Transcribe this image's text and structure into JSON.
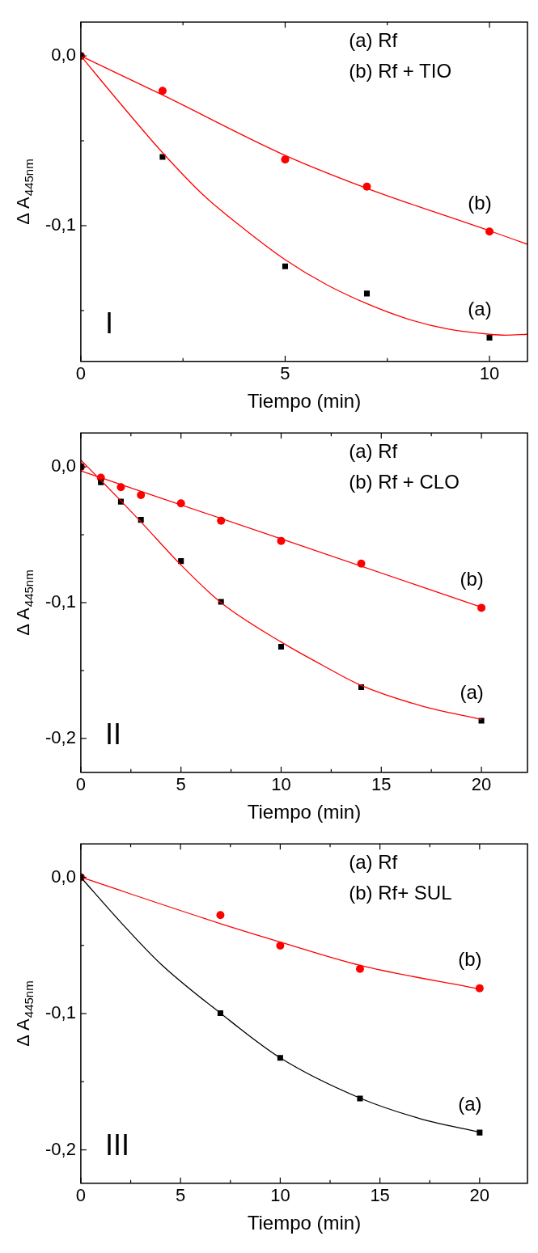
{
  "chart_data": [
    {
      "type": "scatter",
      "title": "I",
      "xlabel": "Tiempo (min)",
      "ylabel": "Δ A$_{445nm}$",
      "xlim": [
        0,
        10.93
      ],
      "ylim": [
        -0.18,
        0.02
      ],
      "xticks": [
        0,
        {
          "value": 2.5,
          "label": null
        },
        5,
        {
          "value": 7.5,
          "label": null
        },
        10
      ],
      "yticks": [
        {
          "value": 0,
          "label": "0,0"
        },
        {
          "value": -0.05,
          "label": null
        },
        {
          "value": -0.1,
          "label": "-0,1"
        },
        {
          "value": -0.15,
          "label": null
        }
      ],
      "grid": false,
      "legend": false,
      "series": [
        {
          "type": "line",
          "marker": "none",
          "color": "#ff0000",
          "x": [
            0,
            1,
            2,
            3,
            4,
            5,
            6,
            7,
            8,
            9,
            10,
            10.4,
            10.93
          ],
          "values": [
            0,
            -0.029,
            -0.057,
            -0.082,
            -0.102,
            -0.12,
            -0.1346,
            -0.146,
            -0.155,
            -0.161,
            -0.164,
            -0.1645,
            -0.164
          ]
        },
        {
          "type": "line",
          "marker": "none",
          "color": "#ff0000",
          "x": [
            0,
            2,
            5,
            7,
            10,
            10.93
          ],
          "values": [
            0,
            -0.023,
            -0.0586,
            -0.078,
            -0.103,
            -0.111
          ]
        },
        {
          "type": "scatter",
          "name": "(a)",
          "marker": "square",
          "color": "#000000",
          "x": [
            0,
            2,
            5,
            7,
            10
          ],
          "values": [
            0,
            -0.0595,
            -0.124,
            -0.14,
            -0.166
          ]
        },
        {
          "type": "scatter",
          "name": "(b)",
          "marker": "circle",
          "color": "#ff0000",
          "x": [
            0,
            2,
            5,
            7,
            10
          ],
          "values": [
            0,
            -0.0205,
            -0.061,
            -0.077,
            -0.1035
          ]
        }
      ],
      "annotations": [
        "(a) Rf",
        "(b) Rf + TIO"
      ]
    },
    {
      "type": "scatter",
      "title": "II",
      "xlabel": "Tiempo (min)",
      "ylabel": "Δ A$_{445nm}$",
      "xlim": [
        0,
        22.3
      ],
      "ylim": [
        -0.225,
        0.025
      ],
      "xticks": [
        0,
        {
          "value": 2.5,
          "label": null
        },
        5,
        {
          "value": 7.5,
          "label": null
        },
        10,
        {
          "value": 12.5,
          "label": null
        },
        15,
        {
          "value": 17.5,
          "label": null
        },
        20
      ],
      "yticks": [
        {
          "value": 0,
          "label": "0,0"
        },
        {
          "value": -0.05,
          "label": null
        },
        {
          "value": -0.1,
          "label": "-0,1"
        },
        {
          "value": -0.15,
          "label": null
        },
        {
          "value": -0.2,
          "label": "-0,2"
        }
      ],
      "grid": false,
      "legend": false,
      "series": [
        {
          "type": "line",
          "marker": "none",
          "color": "#ff0000",
          "x": [
            0,
            1,
            2,
            3,
            5,
            7,
            10,
            12,
            14,
            17,
            20
          ],
          "values": [
            0.005,
            -0.0099,
            -0.025,
            -0.0405,
            -0.0723,
            -0.1,
            -0.129,
            -0.1456,
            -0.161,
            -0.176,
            -0.186
          ]
        },
        {
          "type": "line",
          "marker": "none",
          "color": "#ff0000",
          "x": [
            0,
            10,
            20
          ],
          "values": [
            -0.003,
            -0.053,
            -0.1034
          ]
        },
        {
          "type": "scatter",
          "name": "(a)",
          "marker": "square",
          "color": "#000000",
          "x": [
            0,
            1,
            2,
            3,
            5,
            7,
            10,
            14,
            20
          ],
          "values": [
            0,
            -0.0114,
            -0.0256,
            -0.039,
            -0.0694,
            -0.0994,
            -0.1325,
            -0.1623,
            -0.187
          ]
        },
        {
          "type": "scatter",
          "name": "(b)",
          "marker": "circle",
          "color": "#ff0000",
          "x": [
            0,
            1,
            2,
            3,
            5,
            7,
            10,
            14,
            20
          ],
          "values": [
            0,
            -0.0079,
            -0.0149,
            -0.0208,
            -0.0269,
            -0.0396,
            -0.0545,
            -0.0712,
            -0.1038
          ]
        }
      ],
      "annotations": [
        "(a) Rf",
        "(b) Rf + CLO"
      ]
    },
    {
      "type": "scatter",
      "title": "III",
      "xlabel": "Tiempo (min)",
      "ylabel": "Δ A$_{445nm}$",
      "xlim": [
        0,
        22.4
      ],
      "ylim": [
        -0.2245,
        0.0245
      ],
      "xticks": [
        0,
        {
          "value": 2.5,
          "label": null
        },
        5,
        {
          "value": 7.5,
          "label": null
        },
        10,
        {
          "value": 12.5,
          "label": null
        },
        15,
        {
          "value": 17.5,
          "label": null
        },
        20
      ],
      "yticks": [
        {
          "value": 0,
          "label": "0,0"
        },
        {
          "value": -0.05,
          "label": null
        },
        {
          "value": -0.1,
          "label": "-0,1"
        },
        {
          "value": -0.15,
          "label": null
        },
        {
          "value": -0.2,
          "label": "-0,2"
        }
      ],
      "grid": false,
      "legend": false,
      "series": [
        {
          "type": "line",
          "marker": "none",
          "color": "#000000",
          "x": [
            0,
            2,
            4,
            7,
            10,
            14,
            17,
            20
          ],
          "values": [
            0,
            -0.033,
            -0.0635,
            -0.0997,
            -0.1325,
            -0.162,
            -0.177,
            -0.187
          ]
        },
        {
          "type": "line",
          "marker": "none",
          "color": "#ff0000",
          "x": [
            0,
            7,
            10,
            14,
            20
          ],
          "values": [
            0,
            -0.034,
            -0.0475,
            -0.0646,
            -0.082
          ]
        },
        {
          "type": "scatter",
          "name": "(a)",
          "marker": "square",
          "color": "#000000",
          "x": [
            0,
            7,
            10,
            14,
            20
          ],
          "values": [
            0,
            -0.0997,
            -0.1325,
            -0.1623,
            -0.1873
          ]
        },
        {
          "type": "scatter",
          "name": "(b)",
          "marker": "circle",
          "color": "#ff0000",
          "x": [
            0,
            7,
            10,
            14,
            20
          ],
          "values": [
            0,
            -0.0278,
            -0.0502,
            -0.0672,
            -0.0815
          ]
        }
      ],
      "annotations": [
        "(a) Rf",
        "(b) Rf+ SUL"
      ]
    }
  ]
}
